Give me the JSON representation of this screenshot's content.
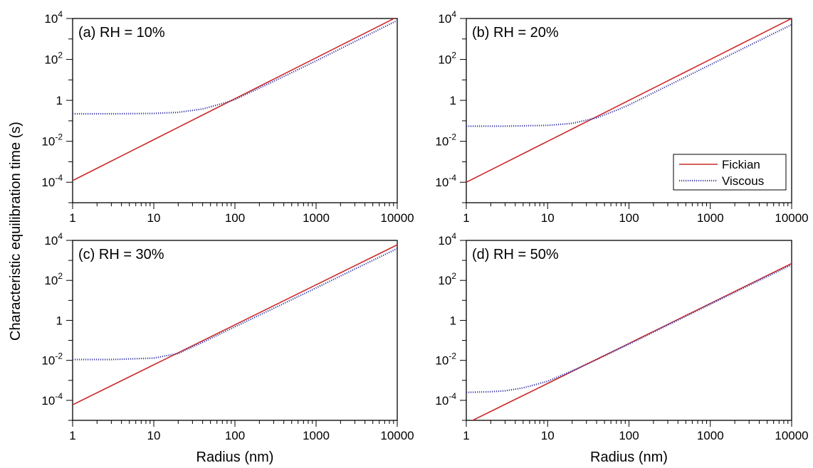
{
  "figure": {
    "ylabel": "Characteristic equilibration time (s)",
    "xlabel": "Radius (nm)"
  },
  "legend": {
    "location": "panel (b), lower-right",
    "entries": [
      {
        "label": "Fickian",
        "color": "#cc2a2a",
        "style": "solid"
      },
      {
        "label": "Viscous",
        "color": "#3a3aa8",
        "style": "dotted"
      }
    ]
  },
  "chart_data": [
    {
      "type": "line",
      "panel_label": "(a) RH = 10%",
      "x_scale": "log",
      "y_scale": "log",
      "xlim": [
        1,
        10000
      ],
      "ylim": [
        1e-05,
        10000
      ],
      "x_ticks": [
        "1",
        "10",
        "100",
        "1000",
        "10000"
      ],
      "y_ticks": [
        {
          "base": "10",
          "exp": "-4"
        },
        {
          "base": "10",
          "exp": "-2"
        },
        {
          "base": "1",
          "exp": ""
        },
        {
          "base": "10",
          "exp": "2"
        },
        {
          "base": "10",
          "exp": "4"
        }
      ],
      "x_title": "",
      "series": [
        {
          "name": "Fickian",
          "x": [
            1,
            10000
          ],
          "y": [
            0.00012,
            12000
          ]
        },
        {
          "name": "Viscous",
          "x": [
            1,
            3,
            10,
            20,
            40,
            70,
            100,
            300,
            1000,
            3000,
            10000
          ],
          "y": [
            0.22,
            0.22,
            0.23,
            0.26,
            0.38,
            0.7,
            1.1,
            8.5,
            85,
            750,
            8000
          ]
        }
      ]
    },
    {
      "type": "line",
      "panel_label": "(b) RH = 20%",
      "x_scale": "log",
      "y_scale": "log",
      "xlim": [
        1,
        10000
      ],
      "ylim": [
        1e-05,
        10000
      ],
      "x_ticks": [
        "1",
        "10",
        "100",
        "1000",
        "10000"
      ],
      "y_ticks": [
        {
          "base": "10",
          "exp": "-4"
        },
        {
          "base": "10",
          "exp": "-2"
        },
        {
          "base": "1",
          "exp": ""
        },
        {
          "base": "10",
          "exp": "2"
        },
        {
          "base": "10",
          "exp": "4"
        }
      ],
      "x_title": "",
      "series": [
        {
          "name": "Fickian",
          "x": [
            1,
            10000
          ],
          "y": [
            0.0001,
            10000
          ]
        },
        {
          "name": "Viscous",
          "x": [
            1,
            3,
            10,
            20,
            40,
            70,
            100,
            300,
            1000,
            3000,
            10000
          ],
          "y": [
            0.055,
            0.055,
            0.06,
            0.075,
            0.14,
            0.33,
            0.6,
            5.2,
            55,
            480,
            5000
          ]
        }
      ]
    },
    {
      "type": "line",
      "panel_label": "(c) RH = 30%",
      "x_scale": "log",
      "y_scale": "log",
      "xlim": [
        1,
        10000
      ],
      "ylim": [
        1e-05,
        10000
      ],
      "x_ticks": [
        "1",
        "10",
        "100",
        "1000",
        "10000"
      ],
      "y_ticks": [
        {
          "base": "10",
          "exp": "-4"
        },
        {
          "base": "10",
          "exp": "-2"
        },
        {
          "base": "1",
          "exp": ""
        },
        {
          "base": "10",
          "exp": "2"
        },
        {
          "base": "10",
          "exp": "4"
        }
      ],
      "x_title": "Radius (nm)",
      "series": [
        {
          "name": "Fickian",
          "x": [
            1,
            10000
          ],
          "y": [
            6e-05,
            6000
          ]
        },
        {
          "name": "Viscous",
          "x": [
            1,
            3,
            10,
            20,
            40,
            70,
            100,
            300,
            1000,
            3000,
            10000
          ],
          "y": [
            0.011,
            0.011,
            0.013,
            0.022,
            0.08,
            0.24,
            0.48,
            4.0,
            42,
            370,
            3900
          ]
        }
      ]
    },
    {
      "type": "line",
      "panel_label": "(d) RH = 50%",
      "x_scale": "log",
      "y_scale": "log",
      "xlim": [
        1,
        10000
      ],
      "ylim": [
        1e-05,
        10000
      ],
      "x_ticks": [
        "1",
        "10",
        "100",
        "1000",
        "10000"
      ],
      "y_ticks": [
        {
          "base": "10",
          "exp": "-4"
        },
        {
          "base": "10",
          "exp": "-2"
        },
        {
          "base": "1",
          "exp": ""
        },
        {
          "base": "10",
          "exp": "2"
        },
        {
          "base": "10",
          "exp": "4"
        }
      ],
      "x_title": "Radius (nm)",
      "series": [
        {
          "name": "Fickian",
          "x": [
            1,
            10000
          ],
          "y": [
            7e-06,
            700
          ]
        },
        {
          "name": "Viscous",
          "x": [
            1,
            2,
            3,
            5,
            10,
            20,
            40,
            100,
            300,
            1000,
            3000,
            10000
          ],
          "y": [
            0.00025,
            0.00027,
            0.0003,
            0.00042,
            0.0009,
            0.003,
            0.011,
            0.065,
            0.58,
            6.4,
            57,
            600
          ]
        }
      ]
    }
  ]
}
